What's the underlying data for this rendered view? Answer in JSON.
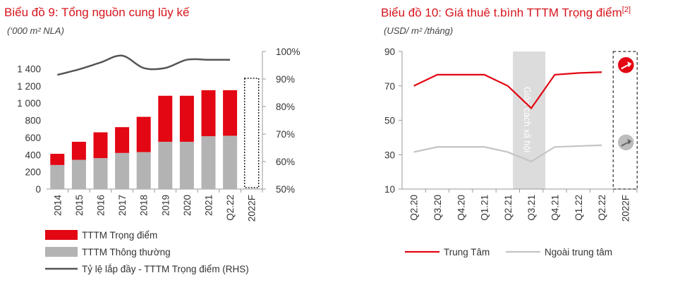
{
  "chart_data": [
    {
      "type": "bar",
      "title": "Biểu đồ 9: Tổng nguồn cung lũy kế",
      "unit": "(‘000 m² NLA)",
      "categories": [
        "2014",
        "2015",
        "2016",
        "2017",
        "2018",
        "2019",
        "2020",
        "2021",
        "Q2.22",
        "2022F"
      ],
      "stacked": true,
      "ylim": [
        0,
        1600
      ],
      "yticks": [
        "0",
        "200",
        "400",
        "600",
        "800",
        "1 000",
        "1 200",
        "1 400"
      ],
      "ytick_values": [
        0,
        200,
        400,
        600,
        800,
        1000,
        1200,
        1400
      ],
      "y2lim": [
        50,
        100
      ],
      "y2ticks": [
        "50%",
        "60%",
        "70%",
        "80%",
        "90%",
        "100%"
      ],
      "y2tick_values": [
        50,
        60,
        70,
        80,
        90,
        100
      ],
      "forecast_category": "2022F",
      "series": [
        {
          "name": "TTTM Trọng điểm",
          "type": "bar",
          "color": "#e30613",
          "values": [
            130,
            210,
            300,
            300,
            410,
            535,
            535,
            535,
            530,
            null
          ]
        },
        {
          "name": "TTTM Thông thường",
          "type": "bar",
          "color": "#b3b3b3",
          "values": [
            280,
            340,
            360,
            420,
            430,
            550,
            550,
            615,
            620,
            null
          ]
        },
        {
          "name": "Tỷ lệ lắp đầy - TTTM Trọng điểm (RHS)",
          "type": "line",
          "axis": "right",
          "color": "#555555",
          "values": [
            91.5,
            93.5,
            96,
            98.5,
            94,
            94,
            97,
            97,
            97,
            null
          ]
        }
      ],
      "legend_position": "bottom"
    },
    {
      "type": "line",
      "title": "Biểu đồ 10: Giá thuê t.bình TTTM Trọng điểm",
      "title_sup": "[2]",
      "unit": "(USD/ m² /tháng)",
      "categories": [
        "Q2.20",
        "Q3.20",
        "Q4.20",
        "Q1.21",
        "Q2.21",
        "Q3.21",
        "Q4.21",
        "Q1.22",
        "Q2.22",
        "2022F"
      ],
      "ylim": [
        10,
        90
      ],
      "yticks": [
        "10",
        "30",
        "50",
        "70",
        "90"
      ],
      "ytick_values": [
        10,
        30,
        50,
        70,
        90
      ],
      "annotation": "Giãn cách xã hội",
      "shaded_range": [
        "Q3.21"
      ],
      "forecast_category": "2022F",
      "series": [
        {
          "name": "Trung Tâm",
          "color": "#e30613",
          "values": [
            70,
            76.5,
            76.5,
            76.5,
            70,
            57,
            76.5,
            77.5,
            78,
            null
          ],
          "outlook": "up"
        },
        {
          "name": "Ngoài trung tâm",
          "color": "#c4c4c4",
          "values": [
            31.5,
            34.5,
            34.5,
            34.5,
            31.5,
            26,
            34.5,
            35,
            35.5,
            null
          ],
          "outlook": "up"
        }
      ],
      "legend_position": "bottom"
    }
  ]
}
